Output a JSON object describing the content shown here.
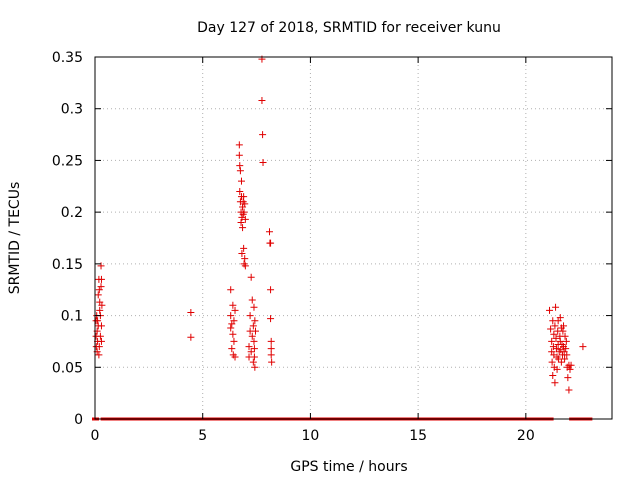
{
  "chart_data": {
    "type": "scatter",
    "title": "Day 127 of 2018, SRMTID for receiver kunu",
    "xlabel": "GPS time / hours",
    "ylabel": "SRMTID / TECUs",
    "xlim": [
      0,
      24
    ],
    "ylim": [
      0,
      0.35
    ],
    "grid": true,
    "marker": "+",
    "color": "#e00000",
    "x_ticks": [
      0,
      5,
      10,
      15,
      20
    ],
    "x_tick_labels": [
      "0",
      "5",
      "10",
      "15",
      "20"
    ],
    "y_ticks": [
      0,
      0.05,
      0.1,
      0.15,
      0.2,
      0.25,
      0.3,
      0.35
    ],
    "y_tick_labels": [
      "0",
      "0.05",
      "0.1",
      "0.15",
      "0.2",
      "0.25",
      "0.3",
      "0.35"
    ],
    "zero_intervals": [
      [
        0.0,
        0.05
      ],
      [
        0.4,
        6.4
      ],
      [
        6.55,
        7.35
      ],
      [
        7.55,
        7.75
      ],
      [
        8.0,
        8.1
      ],
      [
        8.3,
        16.55
      ],
      [
        16.7,
        21.15
      ],
      [
        22.15,
        22.95
      ]
    ],
    "series": [
      {
        "name": "SRMTID",
        "points": [
          [
            0.05,
            0.08
          ],
          [
            0.05,
            0.095
          ],
          [
            0.06,
            0.07
          ],
          [
            0.08,
            0.1
          ],
          [
            0.1,
            0.065
          ],
          [
            0.1,
            0.085
          ],
          [
            0.12,
            0.075
          ],
          [
            0.15,
            0.09
          ],
          [
            0.15,
            0.12
          ],
          [
            0.18,
            0.135
          ],
          [
            0.2,
            0.125
          ],
          [
            0.2,
            0.07
          ],
          [
            0.22,
            0.113
          ],
          [
            0.22,
            0.105
          ],
          [
            0.25,
            0.1
          ],
          [
            0.25,
            0.08
          ],
          [
            0.28,
            0.148
          ],
          [
            0.28,
            0.128
          ],
          [
            0.3,
            0.135
          ],
          [
            0.3,
            0.09
          ],
          [
            0.3,
            0.075
          ],
          [
            0.32,
            0.11
          ],
          [
            0.12,
            0.095
          ],
          [
            0.18,
            0.062
          ],
          [
            4.45,
            0.103
          ],
          [
            4.45,
            0.079
          ],
          [
            6.3,
            0.125
          ],
          [
            6.3,
            0.1
          ],
          [
            6.3,
            0.088
          ],
          [
            6.35,
            0.092
          ],
          [
            6.35,
            0.068
          ],
          [
            6.4,
            0.11
          ],
          [
            6.4,
            0.082
          ],
          [
            6.42,
            0.062
          ],
          [
            6.45,
            0.095
          ],
          [
            6.45,
            0.075
          ],
          [
            6.5,
            0.105
          ],
          [
            6.5,
            0.06
          ],
          [
            6.7,
            0.265
          ],
          [
            6.7,
            0.255
          ],
          [
            6.72,
            0.245
          ],
          [
            6.72,
            0.22
          ],
          [
            6.75,
            0.24
          ],
          [
            6.75,
            0.21
          ],
          [
            6.78,
            0.2
          ],
          [
            6.78,
            0.19
          ],
          [
            6.8,
            0.23
          ],
          [
            6.8,
            0.215
          ],
          [
            6.82,
            0.195
          ],
          [
            6.82,
            0.16
          ],
          [
            6.85,
            0.205
          ],
          [
            6.85,
            0.185
          ],
          [
            6.88,
            0.21
          ],
          [
            6.88,
            0.198
          ],
          [
            6.9,
            0.215
          ],
          [
            6.9,
            0.165
          ],
          [
            6.92,
            0.2
          ],
          [
            6.92,
            0.15
          ],
          [
            6.95,
            0.208
          ],
          [
            6.95,
            0.155
          ],
          [
            6.98,
            0.193
          ],
          [
            6.98,
            0.148
          ],
          [
            7.15,
            0.06
          ],
          [
            7.15,
            0.07
          ],
          [
            7.2,
            0.085
          ],
          [
            7.2,
            0.1
          ],
          [
            7.25,
            0.065
          ],
          [
            7.25,
            0.137
          ],
          [
            7.3,
            0.08
          ],
          [
            7.3,
            0.115
          ],
          [
            7.35,
            0.09
          ],
          [
            7.35,
            0.055
          ],
          [
            7.38,
            0.108
          ],
          [
            7.38,
            0.075
          ],
          [
            7.4,
            0.06
          ],
          [
            7.4,
            0.068
          ],
          [
            7.42,
            0.095
          ],
          [
            7.42,
            0.05
          ],
          [
            7.45,
            0.085
          ],
          [
            7.75,
            0.348
          ],
          [
            7.75,
            0.308
          ],
          [
            7.78,
            0.275
          ],
          [
            7.8,
            0.248
          ],
          [
            8.1,
            0.181
          ],
          [
            8.12,
            0.17
          ],
          [
            8.15,
            0.17
          ],
          [
            8.15,
            0.125
          ],
          [
            8.15,
            0.097
          ],
          [
            8.18,
            0.075
          ],
          [
            8.18,
            0.068
          ],
          [
            8.18,
            0.062
          ],
          [
            8.2,
            0.055
          ],
          [
            21.1,
            0.105
          ],
          [
            21.15,
            0.087
          ],
          [
            21.2,
            0.075
          ],
          [
            21.2,
            0.065
          ],
          [
            21.22,
            0.055
          ],
          [
            21.25,
            0.095
          ],
          [
            21.25,
            0.042
          ],
          [
            21.28,
            0.07
          ],
          [
            21.3,
            0.082
          ],
          [
            21.3,
            0.062
          ],
          [
            21.32,
            0.05
          ],
          [
            21.35,
            0.035
          ],
          [
            21.35,
            0.09
          ],
          [
            21.38,
            0.108
          ],
          [
            21.4,
            0.078
          ],
          [
            21.42,
            0.068
          ],
          [
            21.45,
            0.06
          ],
          [
            21.45,
            0.048
          ],
          [
            21.48,
            0.085
          ],
          [
            21.5,
            0.072
          ],
          [
            21.5,
            0.095
          ],
          [
            21.52,
            0.058
          ],
          [
            21.55,
            0.065
          ],
          [
            21.58,
            0.08
          ],
          [
            21.6,
            0.075
          ],
          [
            21.6,
            0.098
          ],
          [
            21.62,
            0.067
          ],
          [
            21.65,
            0.055
          ],
          [
            21.65,
            0.088
          ],
          [
            21.68,
            0.072
          ],
          [
            21.7,
            0.062
          ],
          [
            21.72,
            0.085
          ],
          [
            21.75,
            0.07
          ],
          [
            21.75,
            0.09
          ],
          [
            21.78,
            0.065
          ],
          [
            21.8,
            0.058
          ],
          [
            21.82,
            0.08
          ],
          [
            21.85,
            0.068
          ],
          [
            21.88,
            0.075
          ],
          [
            21.9,
            0.062
          ],
          [
            21.92,
            0.05
          ],
          [
            21.95,
            0.04
          ],
          [
            22.0,
            0.052
          ],
          [
            22.0,
            0.028
          ],
          [
            22.05,
            0.048
          ],
          [
            22.1,
            0.052
          ],
          [
            22.65,
            0.07
          ]
        ]
      }
    ]
  }
}
